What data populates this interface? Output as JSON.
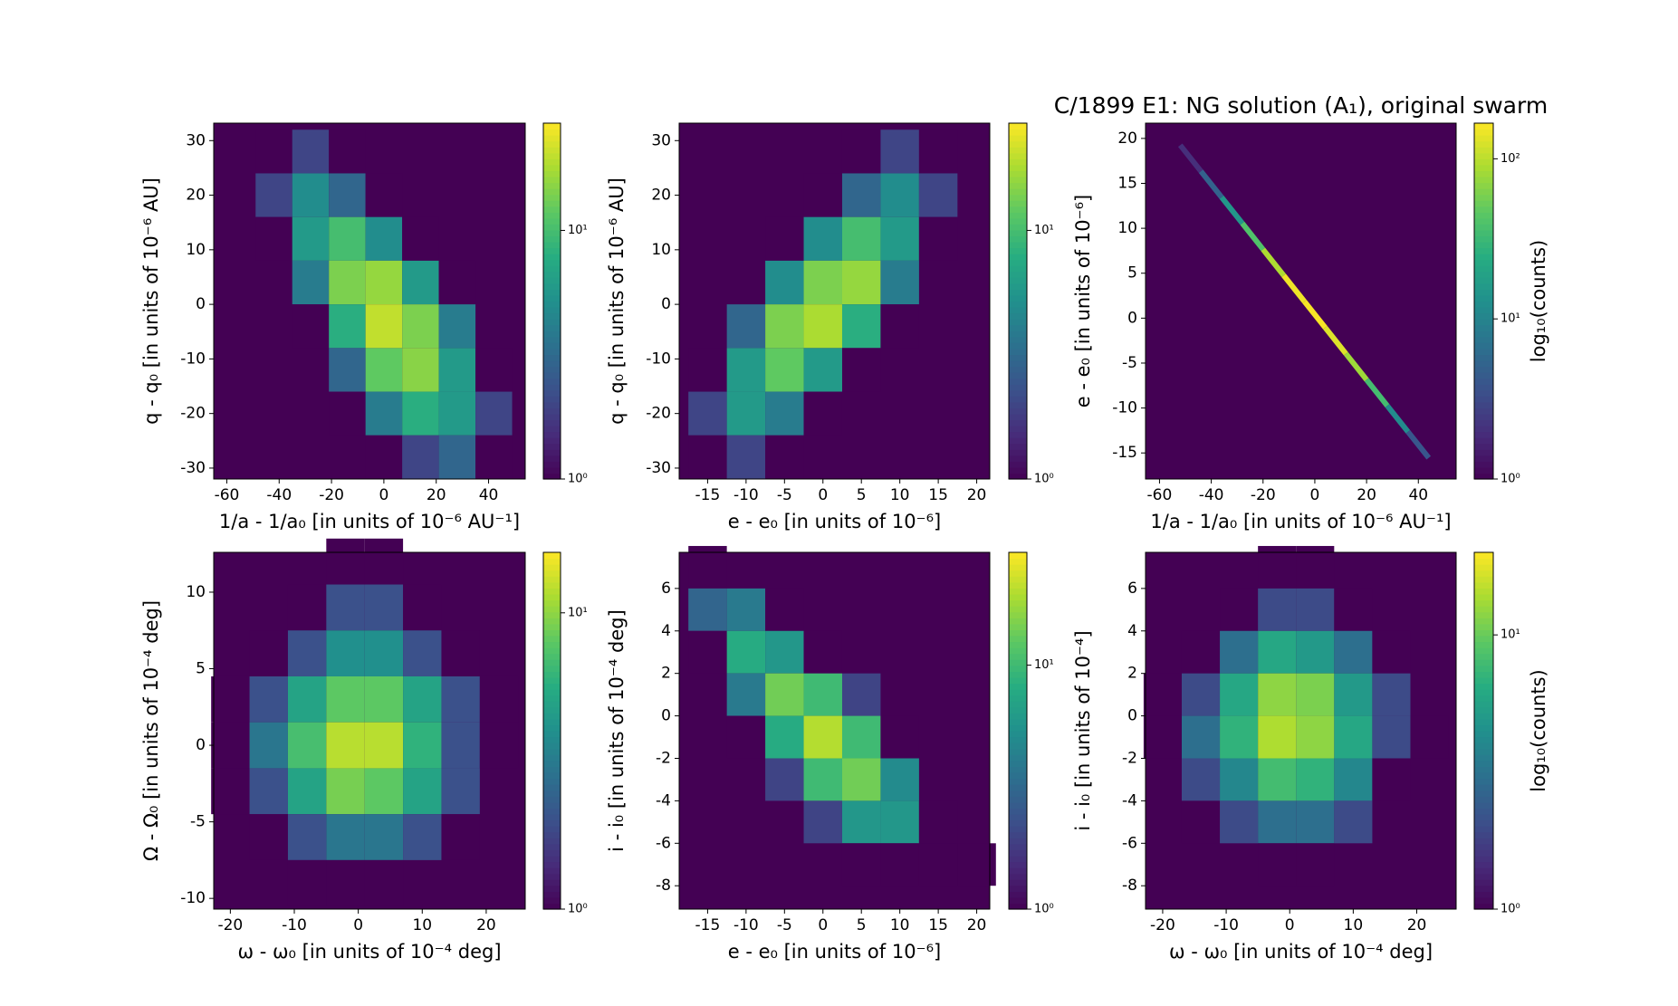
{
  "chart_data": [
    {
      "type": "hexbin",
      "colormap": "viridis",
      "xlabel": "1/a - 1/a₀ [in units of 10⁻⁶ AU⁻¹]",
      "ylabel": "q - q₀ [in units of 10⁻⁶ AU]",
      "x": [
        -56,
        -42,
        -28,
        -14,
        0,
        14,
        28,
        42
      ],
      "y": [
        28,
        20,
        12,
        4,
        -4,
        -12,
        -20,
        -28
      ],
      "counts": [
        [
          null,
          1,
          2,
          1,
          null,
          null,
          null,
          null
        ],
        [
          null,
          2,
          5,
          3,
          1,
          null,
          null,
          null
        ],
        [
          null,
          1,
          6,
          10,
          5,
          1,
          null,
          null
        ],
        [
          null,
          null,
          4,
          14,
          16,
          6,
          1,
          null
        ],
        [
          null,
          null,
          1,
          8,
          20,
          14,
          4,
          null
        ],
        [
          null,
          null,
          null,
          3,
          12,
          15,
          6,
          1
        ],
        [
          null,
          null,
          null,
          1,
          4,
          8,
          6,
          2
        ],
        [
          null,
          null,
          null,
          null,
          1,
          2,
          3,
          1
        ]
      ],
      "xlim": [
        -65,
        54
      ],
      "ylim": [
        -32,
        33.2
      ],
      "xticks": [
        -60,
        -40,
        -20,
        0,
        20,
        40
      ],
      "yticks": [
        -30,
        -20,
        -10,
        0,
        10,
        20,
        30
      ],
      "clim": [
        1,
        27
      ],
      "cticks": [
        {
          "value": 1,
          "label": "10⁰"
        },
        {
          "value": 10,
          "label": "10¹"
        }
      ]
    },
    {
      "type": "hexbin",
      "colormap": "viridis",
      "xlabel": "e - e₀ [in units of 10⁻⁶]",
      "ylabel": "q - q₀ [in units of 10⁻⁶ AU]",
      "x": [
        -15,
        -10,
        -5,
        0,
        5,
        10,
        15,
        20
      ],
      "y": [
        28,
        20,
        12,
        4,
        -4,
        -12,
        -20,
        -28
      ],
      "counts": [
        [
          null,
          null,
          null,
          null,
          1,
          2,
          1,
          null
        ],
        [
          null,
          null,
          null,
          1,
          3,
          5,
          2,
          null
        ],
        [
          null,
          null,
          1,
          5,
          10,
          6,
          1,
          null
        ],
        [
          null,
          null,
          5,
          14,
          16,
          4,
          null,
          null
        ],
        [
          null,
          3,
          14,
          18,
          8,
          1,
          null,
          null
        ],
        [
          1,
          6,
          12,
          6,
          1,
          null,
          null,
          null
        ],
        [
          2,
          6,
          4,
          1,
          null,
          null,
          null,
          null
        ],
        [
          1,
          2,
          1,
          null,
          null,
          null,
          null,
          null
        ]
      ],
      "xlim": [
        -18.7,
        21.7
      ],
      "ylim": [
        -32,
        33.2
      ],
      "xticks": [
        -15,
        -10,
        -5,
        0,
        5,
        10,
        15,
        20
      ],
      "yticks": [
        -30,
        -20,
        -10,
        0,
        10,
        20,
        30
      ],
      "clim": [
        1,
        27
      ],
      "cticks": [
        {
          "value": 1,
          "label": "10⁰"
        },
        {
          "value": 10,
          "label": "10¹"
        }
      ]
    },
    {
      "type": "hexbin",
      "colormap": "viridis",
      "title": "C/1899 E1:  NG solution (A₁), original swarm",
      "xlabel": "1/a - 1/a₀ [in units of 10⁻⁶ AU⁻¹]",
      "ylabel": "e - e₀ [in units of 10⁻⁶]",
      "colorbar_label": "log₁₀(counts)",
      "x": [
        -48,
        -40,
        -32,
        -24,
        -16,
        -8,
        0,
        8,
        16,
        24,
        32,
        40
      ],
      "y": [
        17.8,
        14.9,
        12.0,
        9.1,
        6.2,
        3.3,
        0.4,
        -2.5,
        -5.4,
        -8.3,
        -11.2,
        -14.1
      ],
      "counts": [
        2,
        5,
        15,
        40,
        90,
        150,
        160,
        130,
        80,
        35,
        12,
        4
      ],
      "xlim": [
        -65.4,
        54.6
      ],
      "ylim": [
        -17.9,
        21.7
      ],
      "xticks": [
        -60,
        -40,
        -20,
        0,
        20,
        40
      ],
      "yticks": [
        -15,
        -10,
        -5,
        0,
        5,
        10,
        15,
        20
      ],
      "clim": [
        1,
        167
      ],
      "cticks": [
        {
          "value": 1,
          "label": "10⁰"
        },
        {
          "value": 10,
          "label": "10¹"
        },
        {
          "value": 100,
          "label": "10²"
        }
      ]
    },
    {
      "type": "hexbin",
      "colormap": "viridis",
      "xlabel": "ω - ω₀ [in units of 10⁻⁴ deg]",
      "ylabel": "Ω - Ω₀ [in units of 10⁻⁴ deg]",
      "x": [
        -20,
        -14,
        -8,
        -2,
        4,
        10,
        16,
        22
      ],
      "y": [
        12,
        9,
        6,
        3,
        0,
        -3,
        -6,
        -9
      ],
      "counts": [
        [
          null,
          null,
          null,
          1,
          1,
          null,
          null,
          null
        ],
        [
          null,
          null,
          1,
          2,
          2,
          1,
          null,
          null
        ],
        [
          null,
          1,
          2,
          4,
          4,
          2,
          1,
          null
        ],
        [
          1,
          2,
          5,
          8,
          8,
          5,
          2,
          1
        ],
        [
          1,
          3,
          7,
          12,
          12,
          6,
          2,
          1
        ],
        [
          1,
          2,
          5,
          9,
          8,
          5,
          2,
          null
        ],
        [
          null,
          1,
          2,
          3,
          3,
          2,
          1,
          null
        ],
        [
          null,
          null,
          1,
          1,
          1,
          null,
          null,
          null
        ]
      ],
      "xlim": [
        -22.6,
        26.1
      ],
      "ylim": [
        -10.7,
        12.6
      ],
      "xticks": [
        -20,
        -10,
        0,
        10,
        20
      ],
      "yticks": [
        -10,
        -5,
        0,
        5,
        10
      ],
      "clim": [
        1,
        16
      ],
      "cticks": [
        {
          "value": 1,
          "label": "10⁰"
        },
        {
          "value": 10,
          "label": "10¹"
        }
      ]
    },
    {
      "type": "hexbin",
      "colormap": "viridis",
      "xlabel": "e - e₀ [in units of 10⁻⁶]",
      "ylabel": "i - i₀ [in units of 10⁻⁴ deg]",
      "x": [
        -15,
        -10,
        -5,
        0,
        5,
        10,
        15,
        20
      ],
      "y": [
        7,
        5,
        3,
        1,
        -1,
        -3,
        -5,
        -7
      ],
      "counts": [
        [
          1,
          null,
          null,
          null,
          null,
          null,
          null,
          null
        ],
        [
          3,
          4,
          1,
          null,
          null,
          null,
          null,
          null
        ],
        [
          1,
          8,
          6,
          1,
          null,
          null,
          null,
          null
        ],
        [
          null,
          4,
          14,
          10,
          2,
          null,
          null,
          null
        ],
        [
          null,
          1,
          8,
          20,
          10,
          1,
          null,
          null
        ],
        [
          null,
          null,
          2,
          10,
          14,
          5,
          null,
          null
        ],
        [
          null,
          null,
          null,
          2,
          6,
          6,
          1,
          null
        ],
        [
          null,
          null,
          null,
          null,
          1,
          1,
          1,
          1
        ]
      ],
      "xlim": [
        -18.7,
        21.7
      ],
      "ylim": [
        -9.1,
        7.7
      ],
      "xticks": [
        -15,
        -10,
        -5,
        0,
        5,
        10,
        15,
        20
      ],
      "yticks": [
        -8,
        -6,
        -4,
        -2,
        0,
        2,
        4,
        6
      ],
      "clim": [
        1,
        29
      ],
      "cticks": [
        {
          "value": 1,
          "label": "10⁰"
        },
        {
          "value": 10,
          "label": "10¹"
        }
      ]
    },
    {
      "type": "hexbin",
      "colormap": "viridis",
      "xlabel": "ω - ω₀ [in units of 10⁻⁴ deg]",
      "ylabel": "i - i₀ [in units of 10⁻⁴]",
      "colorbar_label": "log₁₀(counts)",
      "x": [
        -20,
        -14,
        -8,
        -2,
        4,
        10,
        16,
        22
      ],
      "y": [
        7,
        5,
        3,
        1,
        -1,
        -3,
        -5,
        -7
      ],
      "counts": [
        [
          null,
          null,
          null,
          1,
          1,
          null,
          null,
          null
        ],
        [
          null,
          null,
          1,
          2,
          2,
          1,
          null,
          null
        ],
        [
          null,
          1,
          3,
          6,
          5,
          3,
          1,
          null
        ],
        [
          1,
          2,
          6,
          12,
          11,
          5,
          2,
          null
        ],
        [
          1,
          3,
          7,
          14,
          12,
          6,
          2,
          1
        ],
        [
          null,
          2,
          4,
          8,
          7,
          4,
          1,
          null
        ],
        [
          null,
          1,
          2,
          3,
          3,
          2,
          null,
          null
        ],
        [
          null,
          null,
          null,
          1,
          1,
          null,
          null,
          null
        ]
      ],
      "xlim": [
        -22.7,
        26.2
      ],
      "ylim": [
        -9.1,
        7.7
      ],
      "xticks": [
        -20,
        -10,
        0,
        10,
        20
      ],
      "yticks": [
        -8,
        -6,
        -4,
        -2,
        0,
        2,
        4,
        6
      ],
      "clim": [
        1,
        20
      ],
      "cticks": [
        {
          "value": 1,
          "label": "10⁰"
        },
        {
          "value": 10,
          "label": "10¹"
        }
      ]
    }
  ]
}
